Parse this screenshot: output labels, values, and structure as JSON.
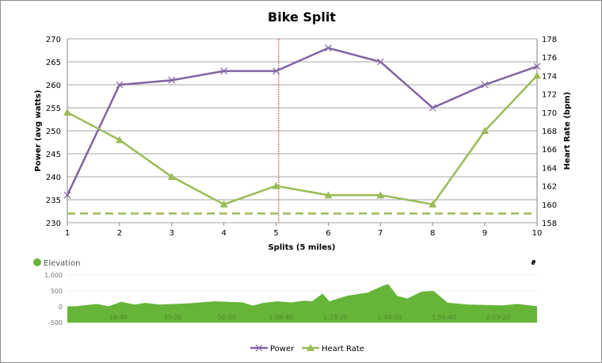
{
  "chart_data": [
    {
      "type": "line",
      "title": "Bike Split",
      "xlabel": "Splits (5 miles)",
      "ylabel": "Power (avg watts)",
      "y2label": "Heart Rate (bpm)",
      "categories": [
        "1",
        "2",
        "3",
        "4",
        "5",
        "6",
        "7",
        "8",
        "9",
        "10"
      ],
      "ylim": [
        230,
        270
      ],
      "yticks": [
        230,
        235,
        240,
        245,
        250,
        255,
        260,
        265,
        270
      ],
      "y2lim": [
        158,
        178
      ],
      "y2ticks": [
        158,
        160,
        162,
        164,
        166,
        168,
        170,
        172,
        174,
        176,
        178
      ],
      "grid": true,
      "legend_position": "bottom",
      "series": [
        {
          "name": "Power",
          "axis": "left",
          "color": "#8064a2",
          "marker": "x",
          "values": [
            236,
            260,
            261,
            263,
            263,
            268,
            265,
            255,
            260,
            264
          ]
        },
        {
          "name": "Heart Rate",
          "axis": "right",
          "color": "#9bbb59",
          "marker": "triangle",
          "values": [
            170,
            167,
            163,
            160,
            162,
            161,
            161,
            160,
            168,
            174
          ]
        }
      ],
      "reference_lines": [
        {
          "orientation": "horizontal",
          "axis": "left",
          "value": 232,
          "color": "#9bbb59",
          "style": "dashed"
        },
        {
          "orientation": "vertical",
          "value": 5.05,
          "color": "#c0504d",
          "style": "dotted"
        }
      ]
    },
    {
      "type": "area",
      "legend": "Elevation",
      "color": "#66b539",
      "ylim": [
        -500,
        1000
      ],
      "yticks": [
        "-500",
        "0",
        "500",
        "1,000"
      ],
      "yticks_values": [
        -500,
        0,
        500,
        1000
      ],
      "xticks": [
        "16:40",
        "33:20",
        "50:00",
        "1:06:40",
        "1:23:20",
        "1:40:00",
        "1:56:40",
        "2:13:20"
      ],
      "x_unit": "minutes",
      "x": [
        0,
        2.6,
        9.0,
        12.7,
        16.5,
        20.7,
        23.9,
        28.2,
        36.7,
        45.3,
        53.8,
        57.0,
        60.2,
        64.5,
        68.8,
        73.0,
        75.2,
        78.4,
        80.5,
        85.9,
        92.3,
        97.6,
        98.7,
        101.3,
        104.5,
        108.8,
        112.5,
        116.8,
        123.2,
        133.9,
        138.2,
        144.3
      ],
      "values": [
        10,
        17,
        86,
        17,
        155,
        69,
        121,
        69,
        103,
        172,
        138,
        34,
        121,
        172,
        138,
        190,
        172,
        414,
        172,
        345,
        448,
        690,
        707,
        345,
        259,
        474,
        500,
        129,
        69,
        43,
        86,
        17
      ]
    }
  ]
}
